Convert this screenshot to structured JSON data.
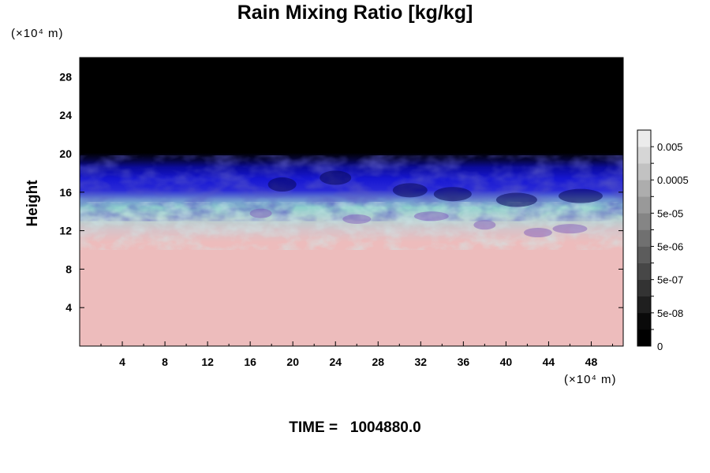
{
  "chart_data": {
    "type": "heatmap",
    "title": "Rain Mixing Ratio [kg/kg]",
    "ylabel": "Height",
    "y_unit": "(×10⁴ m)",
    "x_unit": "(×10⁴ m)",
    "x_ticks": [
      4,
      8,
      12,
      16,
      20,
      24,
      28,
      32,
      36,
      40,
      44,
      48
    ],
    "y_ticks": [
      4,
      8,
      12,
      16,
      20,
      24,
      28
    ],
    "xlim": [
      0,
      51
    ],
    "ylim": [
      0,
      30
    ],
    "colorbar": {
      "labels": [
        "0",
        "5e-08",
        "5e-07",
        "5e-06",
        "5e-05",
        "0.0005",
        "0.005"
      ],
      "levels": 13,
      "colors_bottom_to_top": [
        "#000000",
        "#0a0a0a",
        "#1f1f1f",
        "#333333",
        "#474747",
        "#5c5c5c",
        "#707070",
        "#858585",
        "#999999",
        "#adadad",
        "#c2c2c2",
        "#d6d6d6",
        "#ebebeb"
      ]
    },
    "field_layers": [
      {
        "y_range": [
          0,
          11
        ],
        "color": "#edbcbc",
        "description": "near-uniform lower layer"
      },
      {
        "y_range": [
          11,
          14
        ],
        "color": "#8fd0cc",
        "description": "turbulent transition layer"
      },
      {
        "y_range": [
          14,
          19.5
        ],
        "color": "#1212c8",
        "description": "upper band"
      },
      {
        "y_range": [
          19.5,
          30
        ],
        "color": "#000000",
        "description": "top region"
      }
    ]
  },
  "footer": {
    "time_label": "TIME =",
    "time_value": "1004880.0"
  }
}
